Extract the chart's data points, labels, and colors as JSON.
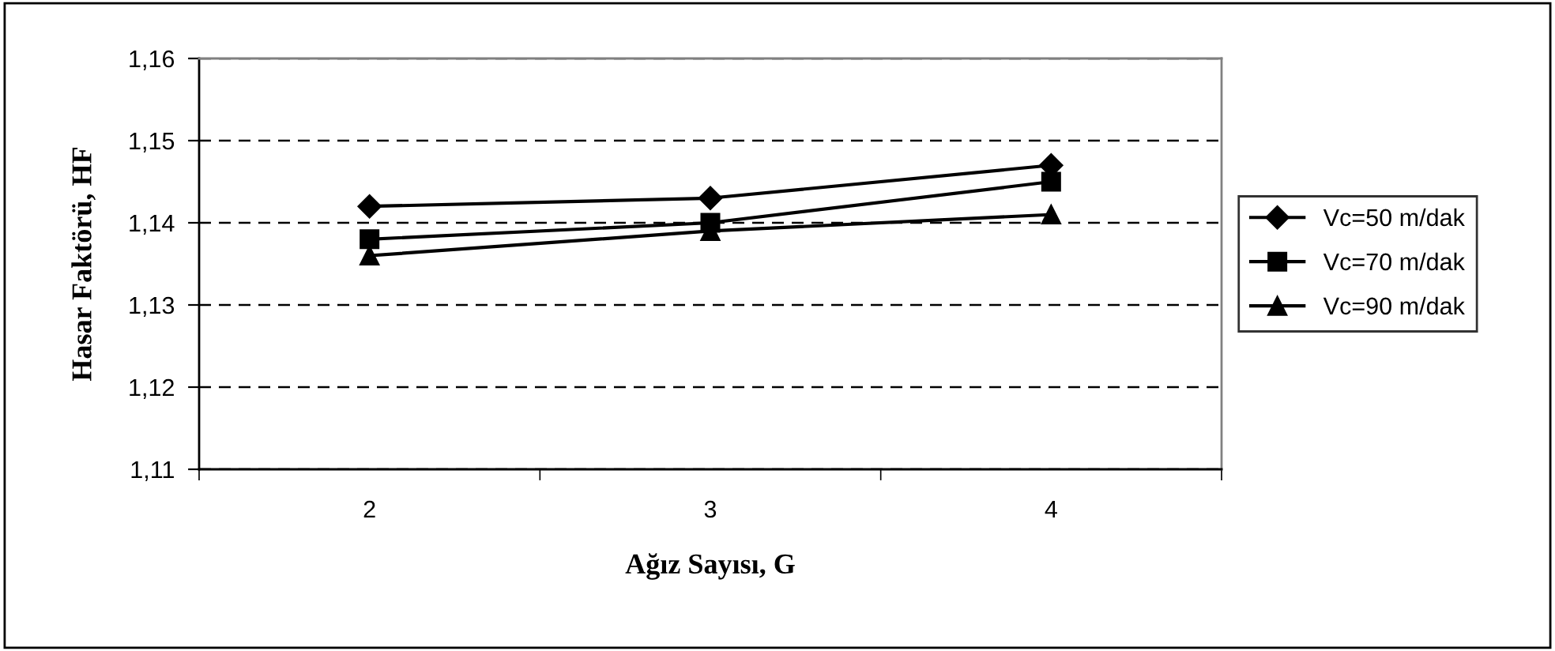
{
  "chart_data": {
    "type": "line",
    "xlabel": "Ağız Sayısı, G",
    "ylabel": "Hasar Faktörü, HF",
    "categories": [
      "2",
      "3",
      "4"
    ],
    "series": [
      {
        "name": "Vc=50 m/dak",
        "color": "#000000",
        "marker": "diamond",
        "values": [
          1.142,
          1.143,
          1.147
        ]
      },
      {
        "name": "Vc=70 m/dak",
        "color": "#000000",
        "marker": "square",
        "values": [
          1.138,
          1.14,
          1.145
        ]
      },
      {
        "name": "Vc=90 m/dak",
        "color": "#000000",
        "marker": "triangle",
        "values": [
          1.136,
          1.139,
          1.141
        ]
      }
    ],
    "ylim": [
      1.11,
      1.16
    ],
    "yticks": [
      {
        "value": 1.11,
        "label": "1,11"
      },
      {
        "value": 1.12,
        "label": "1,12"
      },
      {
        "value": 1.13,
        "label": "1,13"
      },
      {
        "value": 1.14,
        "label": "1,14"
      },
      {
        "value": 1.15,
        "label": "1,15"
      },
      {
        "value": 1.16,
        "label": "1,16"
      }
    ],
    "grid": "y",
    "legend": "right",
    "line_style": "solid"
  }
}
